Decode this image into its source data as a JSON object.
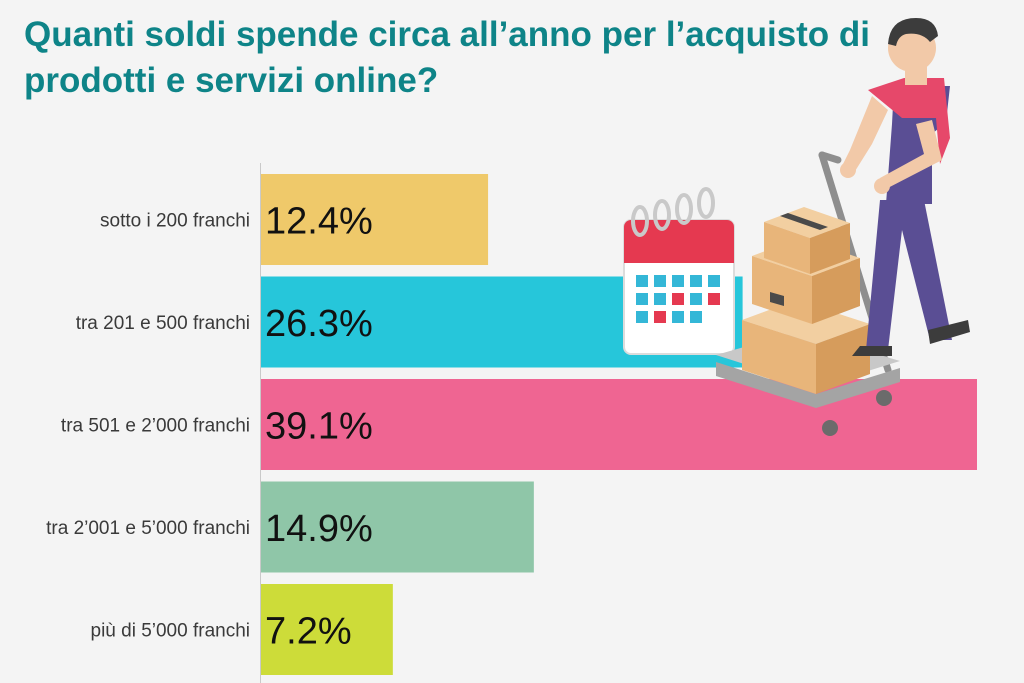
{
  "title": "Quanti soldi spende circa all’anno per l’acquisto di prodotti e servizi online?",
  "chart_data": {
    "type": "bar",
    "orientation": "horizontal",
    "title": "Quanti soldi spende circa all’anno per l’acquisto di prodotti e servizi online?",
    "categories": [
      "sotto i 200 franchi",
      "tra 201 e 500 franchi",
      "tra 501 e 2’000 franchi",
      "tra 2’001 e 5’000 franchi",
      "più di 5’000 franchi"
    ],
    "values": [
      12.4,
      26.3,
      39.1,
      14.9,
      7.2
    ],
    "value_labels": [
      "12.4%",
      "26.3%",
      "39.1%",
      "14.9%",
      "7.2%"
    ],
    "colors": [
      "#efc96a",
      "#26c6da",
      "#ef6592",
      "#8fc6a8",
      "#cddc39"
    ],
    "xlim": [
      0,
      39.1
    ],
    "grid": false,
    "legend": "none"
  }
}
